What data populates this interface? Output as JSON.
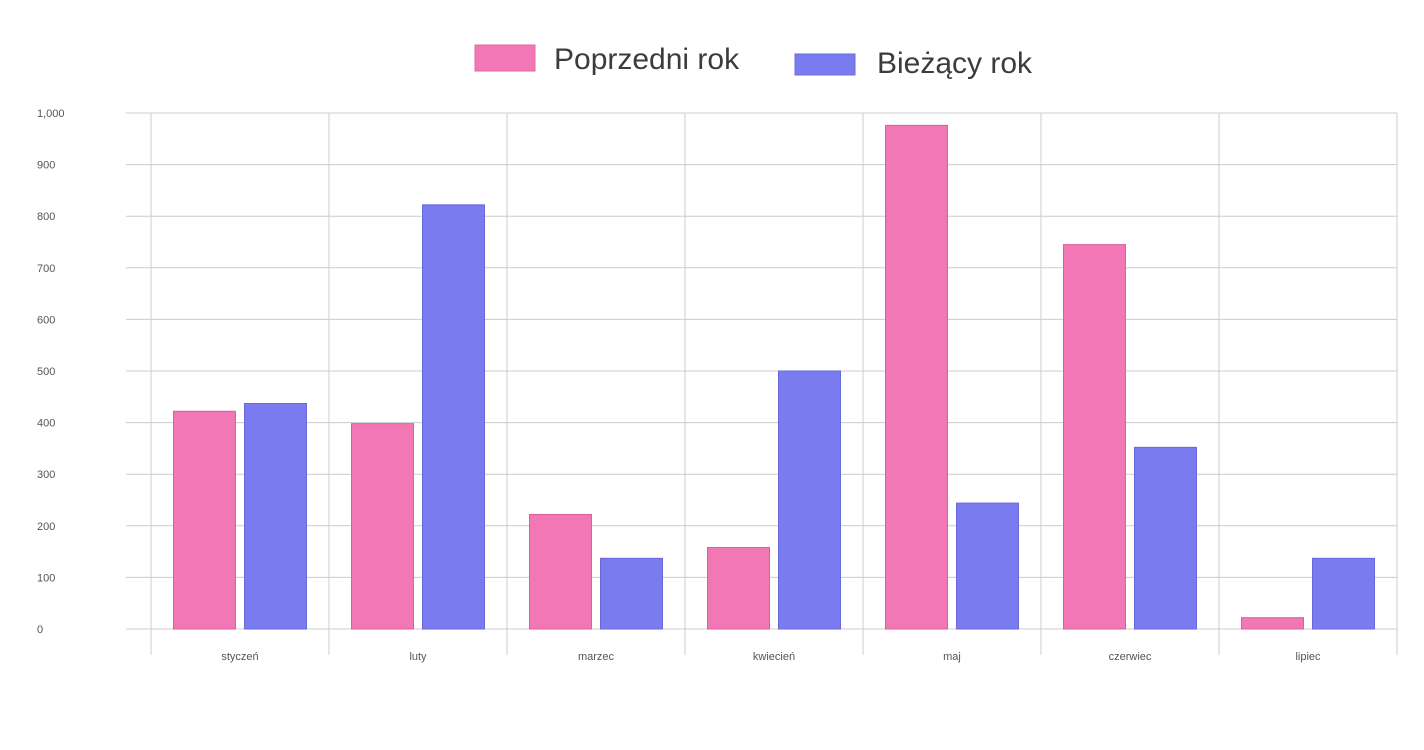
{
  "chart_data": {
    "type": "bar",
    "categories": [
      "styczeń",
      "luty",
      "marzec",
      "kwiecień",
      "maj",
      "czerwiec",
      "lipiec"
    ],
    "series": [
      {
        "name": "Poprzedni rok",
        "color": "#f178b4",
        "values": [
          422,
          398,
          222,
          158,
          976,
          745,
          22
        ]
      },
      {
        "name": "Bieżący rok",
        "color": "#7b7bf0",
        "values": [
          437,
          822,
          137,
          500,
          244,
          352,
          137
        ]
      }
    ],
    "ylim": [
      0,
      1000
    ],
    "yticks": [
      0,
      100,
      200,
      300,
      400,
      500,
      600,
      700,
      800,
      900,
      1000
    ],
    "ytick_labels": [
      "0",
      "100",
      "200",
      "300",
      "400",
      "500",
      "600",
      "700",
      "800",
      "900",
      "1,000"
    ],
    "xlabel": "",
    "ylabel": "",
    "grid": true,
    "legend_position": "top-center"
  }
}
